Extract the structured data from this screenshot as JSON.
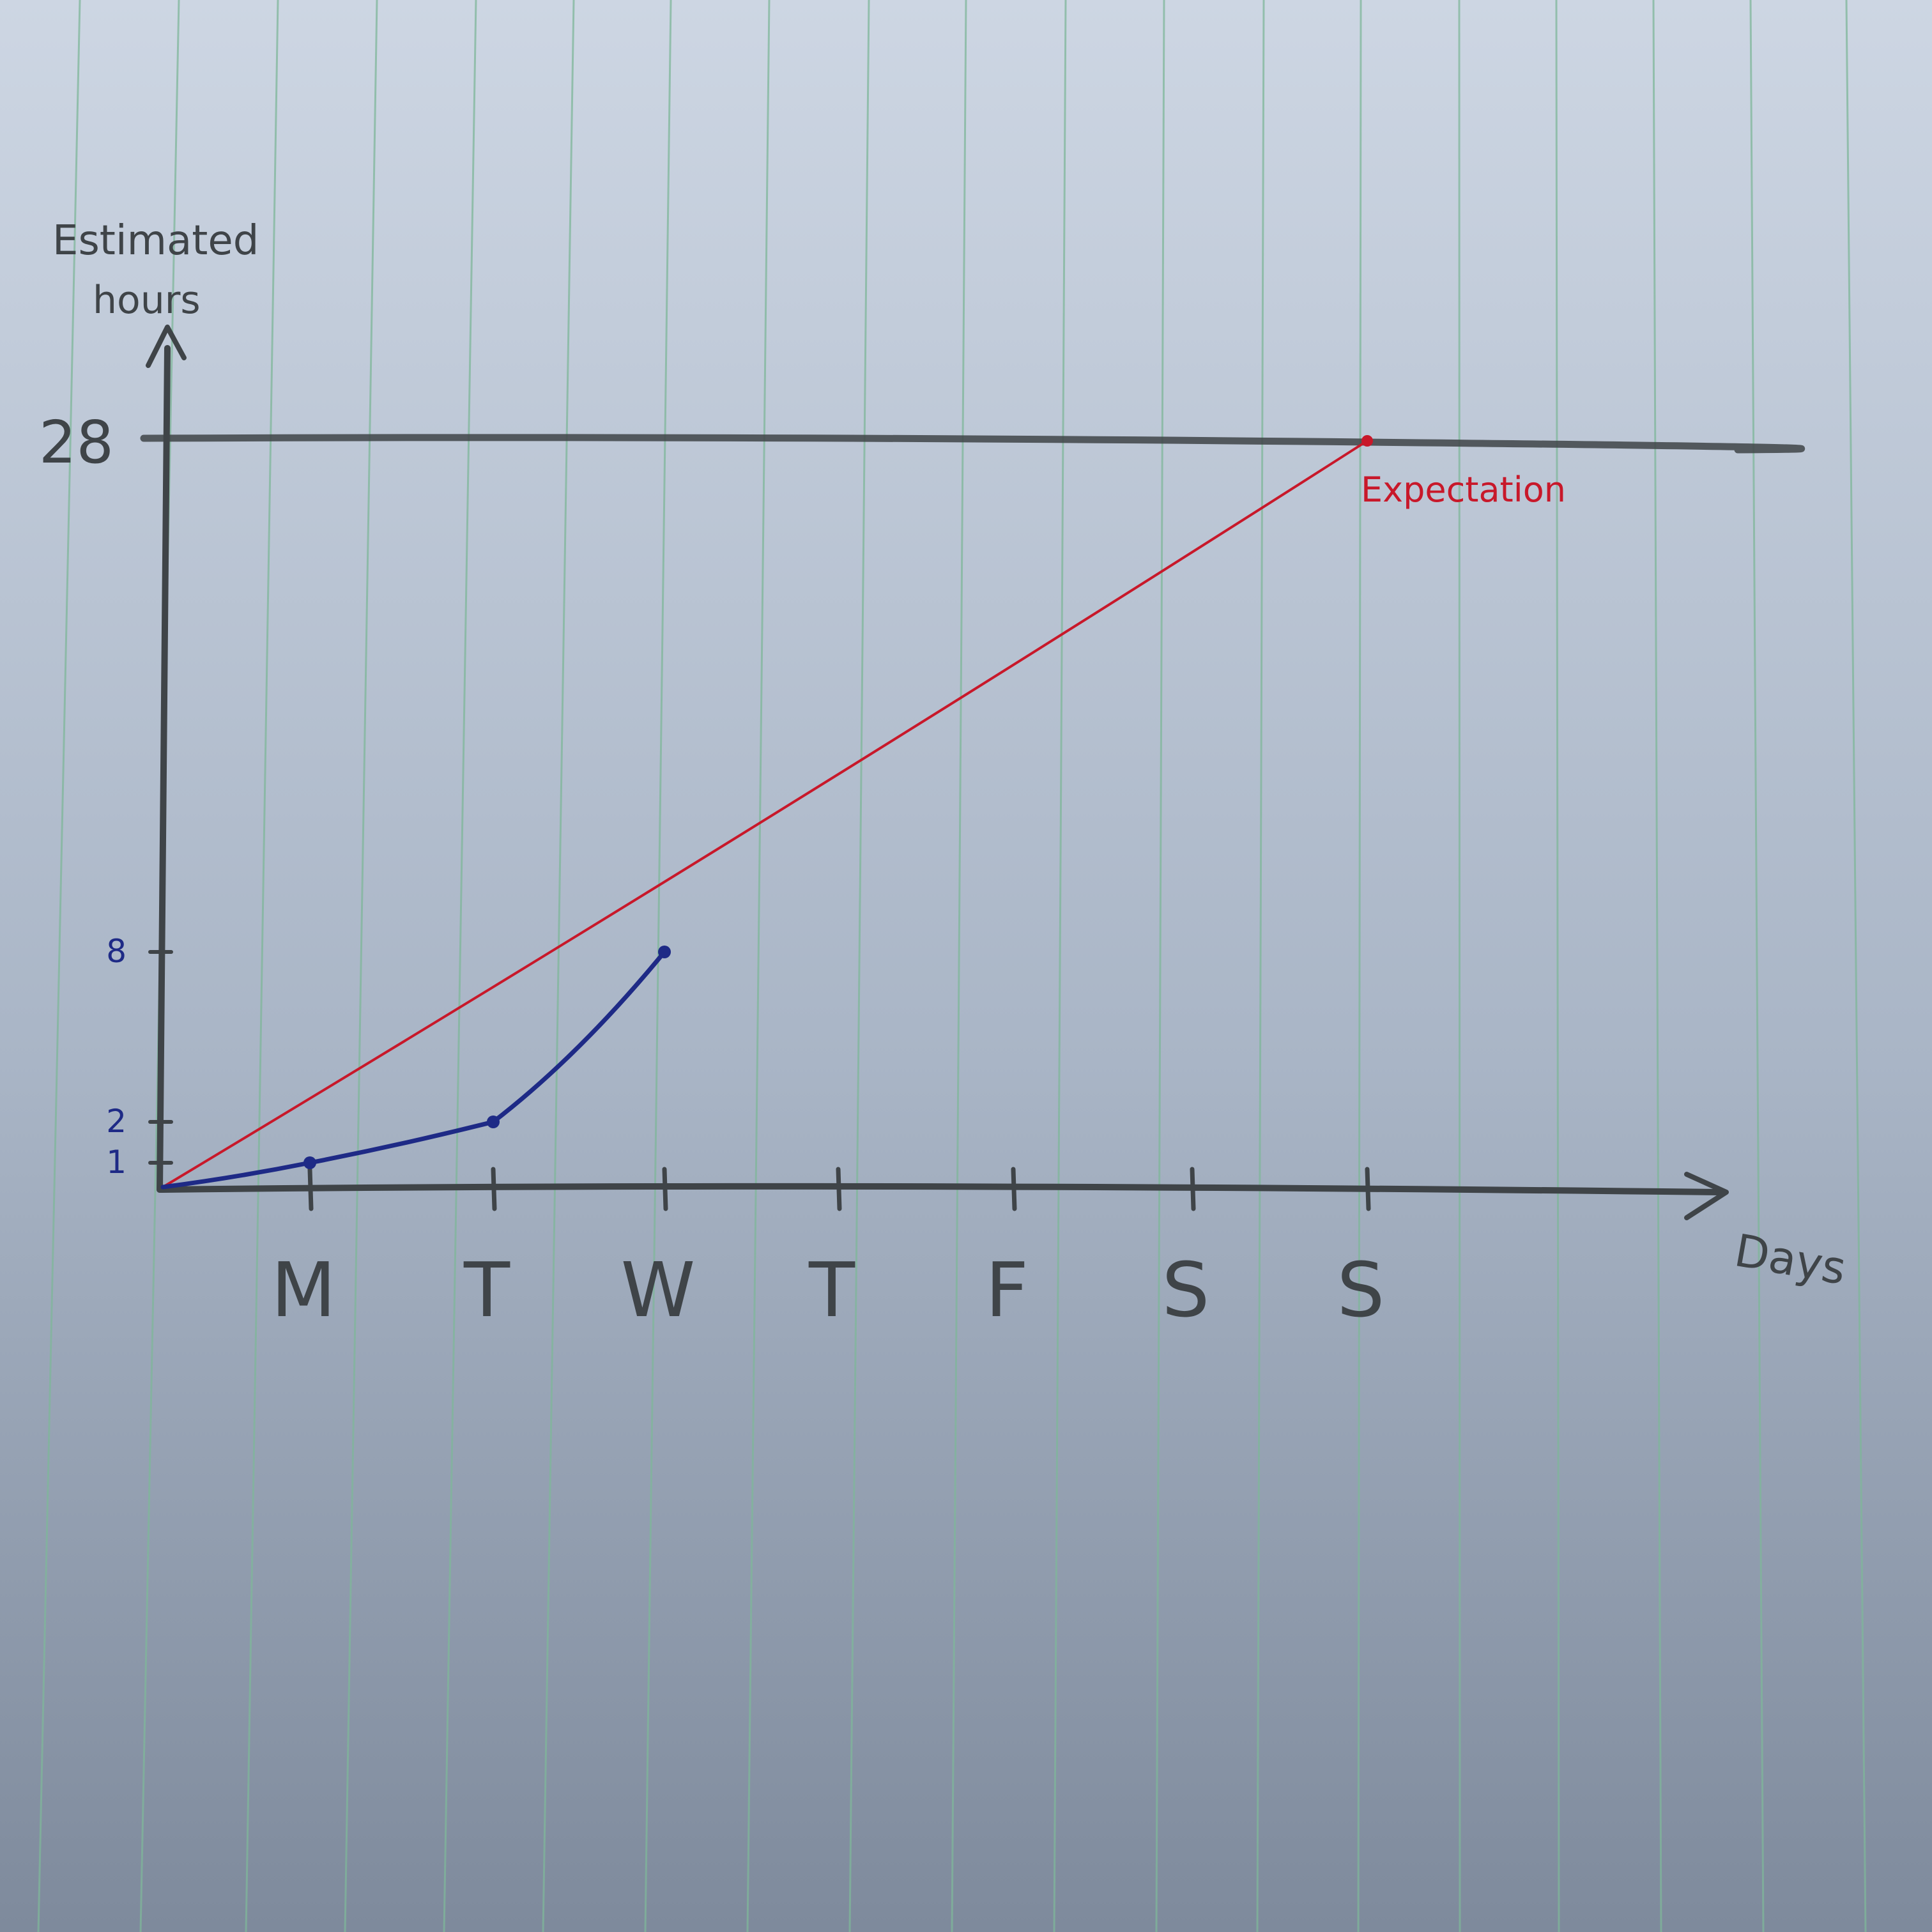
{
  "palette": {
    "paper_top": "#cdd6e3",
    "paper_bottom": "#7e8a9c",
    "rule_line": "#7fb79a",
    "pencil": "#3f4448",
    "expectation_red": "#c8182a",
    "actual_blue": "#1e2a86"
  },
  "chart_data": {
    "type": "line",
    "title": "",
    "xlabel": "Days",
    "ylabel": "Estimated hours",
    "categories": [
      "M",
      "T",
      "W",
      "T",
      "F",
      "S",
      "S"
    ],
    "x_origin_label": "",
    "ylim": [
      0,
      28
    ],
    "y_ticks": [
      {
        "value": 1,
        "label": "1",
        "color": "actual_blue"
      },
      {
        "value": 2,
        "label": "2",
        "color": "actual_blue"
      },
      {
        "value": 8,
        "label": "8",
        "color": "actual_blue"
      },
      {
        "value": 28,
        "label": "28",
        "color": "pencil"
      }
    ],
    "reference_line": {
      "value": 28
    },
    "grid": false,
    "series": [
      {
        "name": "Expectation",
        "color": "expectation_red",
        "x": [
          0,
          7
        ],
        "y": [
          0,
          28
        ]
      },
      {
        "name": "",
        "color": "actual_blue",
        "x": [
          0,
          1,
          2,
          3
        ],
        "y": [
          0,
          1,
          2,
          8
        ]
      }
    ]
  }
}
